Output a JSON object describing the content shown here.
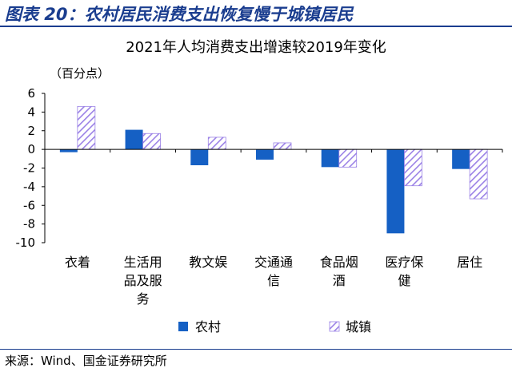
{
  "figure_title": "图表 20：农村居民消费支出恢复慢于城镇居民",
  "source": "来源：Wind、国金证券研究所",
  "colors": {
    "rural": "#1560c4",
    "urban_hatch": "#9b82e6",
    "brand": "#1a3d8f"
  },
  "chart_data": {
    "type": "bar",
    "title": "2021年人均消费支出增速较2019年变化",
    "unit": "（百分点）",
    "categories": [
      [
        "衣着"
      ],
      [
        "生活用",
        "品及服",
        "务"
      ],
      [
        "教文娱"
      ],
      [
        "交通通",
        "信"
      ],
      [
        "食品烟",
        "酒"
      ],
      [
        "医疗保",
        "健"
      ],
      [
        "居住"
      ]
    ],
    "series": [
      {
        "name": "农村",
        "values": [
          -0.3,
          2.1,
          -1.7,
          -1.1,
          -1.9,
          -9.0,
          -2.1
        ]
      },
      {
        "name": "城镇",
        "values": [
          4.6,
          1.7,
          1.3,
          0.7,
          -1.9,
          -3.9,
          -5.3
        ]
      }
    ],
    "ylim": [
      -10,
      6
    ],
    "yticks": [
      6,
      4,
      2,
      0,
      -2,
      -4,
      -6,
      -8,
      -10
    ],
    "legend": "bottom-center"
  }
}
